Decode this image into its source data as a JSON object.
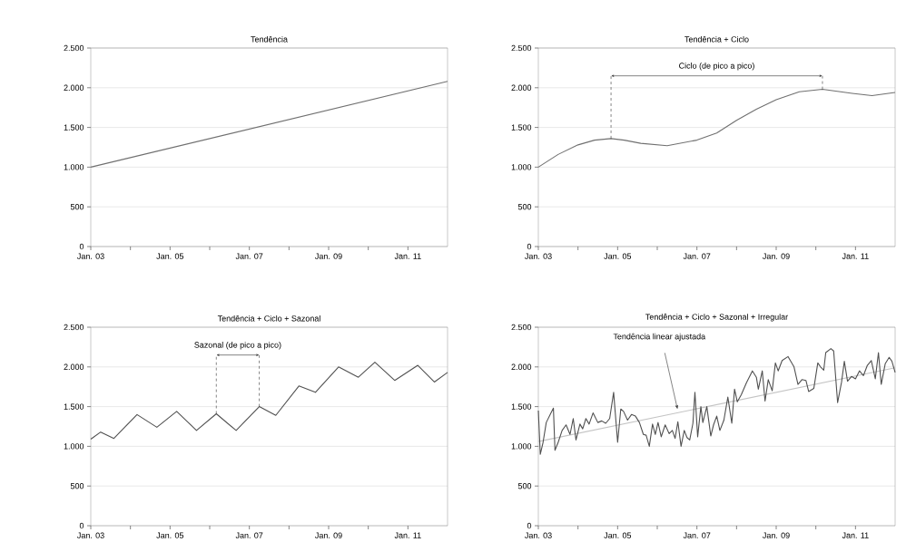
{
  "chart_data": [
    {
      "type": "line",
      "title": "Tendência",
      "grid": "y",
      "xlim": [
        "2003-01",
        "2012-01"
      ],
      "ylim": [
        0,
        2500
      ],
      "xticks": [
        {
          "value": "2003-01",
          "label": "Jan. 03"
        },
        {
          "value": "2004-01",
          "label": null
        },
        {
          "value": "2005-01",
          "label": "Jan. 05"
        },
        {
          "value": "2006-01",
          "label": null
        },
        {
          "value": "2007-01",
          "label": "Jan. 07"
        },
        {
          "value": "2008-01",
          "label": null
        },
        {
          "value": "2009-01",
          "label": "Jan. 09"
        },
        {
          "value": "2010-01",
          "label": null
        },
        {
          "value": "2011-01",
          "label": "Jan. 11"
        }
      ],
      "yticks": [
        0,
        500,
        {
          "value": 1000,
          "label": "1.000"
        },
        {
          "value": 1500,
          "label": "1.500"
        },
        {
          "value": 2000,
          "label": "2.000"
        },
        {
          "value": 2500,
          "label": "2.500"
        }
      ],
      "series": [
        {
          "color": "#707070",
          "x": [
            "2003-01",
            "2012-01"
          ],
          "values": [
            1000,
            2080
          ]
        }
      ]
    },
    {
      "type": "line",
      "title": "Tendência + Ciclo",
      "grid": "y",
      "xlim": [
        "2003-01",
        "2012-01"
      ],
      "ylim": [
        0,
        2500
      ],
      "xticks": [
        {
          "value": "2003-01",
          "label": "Jan. 03"
        },
        {
          "value": "2004-01",
          "label": null
        },
        {
          "value": "2005-01",
          "label": "Jan. 05"
        },
        {
          "value": "2006-01",
          "label": null
        },
        {
          "value": "2007-01",
          "label": "Jan. 07"
        },
        {
          "value": "2008-01",
          "label": null
        },
        {
          "value": "2009-01",
          "label": "Jan. 09"
        },
        {
          "value": "2010-01",
          "label": null
        },
        {
          "value": "2011-01",
          "label": "Jan. 11"
        }
      ],
      "yticks": [
        0,
        500,
        {
          "value": 1000,
          "label": "1.000"
        },
        {
          "value": 1500,
          "label": "1.500"
        },
        {
          "value": 2000,
          "label": "2.000"
        },
        {
          "value": 2500,
          "label": "2.500"
        }
      ],
      "annotations": [
        "Ciclo (de pico a pico)"
      ],
      "series": [
        {
          "color": "#707070",
          "x": [
            "2003-01",
            "2003-07",
            "2004-01",
            "2004-06",
            "2004-11",
            "2005-03",
            "2005-08",
            "2006-04",
            "2007-01",
            "2007-07",
            "2008-01",
            "2008-07",
            "2009-01",
            "2009-08",
            "2010-03",
            "2010-12",
            "2011-06",
            "2012-01"
          ],
          "values": [
            1000,
            1160,
            1280,
            1340,
            1360,
            1340,
            1300,
            1270,
            1340,
            1430,
            1590,
            1730,
            1850,
            1950,
            1980,
            1930,
            1900,
            1940
          ]
        }
      ]
    },
    {
      "type": "line",
      "title": "Tendência + Ciclo + Sazonal",
      "grid": "y",
      "xlim": [
        "2003-01",
        "2012-01"
      ],
      "ylim": [
        0,
        2500
      ],
      "xticks": [
        {
          "value": "2003-01",
          "label": "Jan. 03"
        },
        {
          "value": "2004-01",
          "label": null
        },
        {
          "value": "2005-01",
          "label": "Jan. 05"
        },
        {
          "value": "2006-01",
          "label": null
        },
        {
          "value": "2007-01",
          "label": "Jan. 07"
        },
        {
          "value": "2008-01",
          "label": null
        },
        {
          "value": "2009-01",
          "label": "Jan. 09"
        },
        {
          "value": "2010-01",
          "label": null
        },
        {
          "value": "2011-01",
          "label": "Jan. 11"
        }
      ],
      "yticks": [
        0,
        500,
        {
          "value": 1000,
          "label": "1.000"
        },
        {
          "value": 1500,
          "label": "1.500"
        },
        {
          "value": 2000,
          "label": "2.000"
        },
        {
          "value": 2500,
          "label": "2.500"
        }
      ],
      "annotations": [
        {
          "text": "Sazonal (de pico a pico)",
          "x": "2006-03",
          "y": 1410
        }
      ],
      "series": [
        {
          "color": "#505050",
          "x": [
            "2003-01",
            "2003-04",
            "2003-08",
            "2004-03",
            "2004-09",
            "2005-03",
            "2005-09",
            "2006-03",
            "2006-09",
            "2007-04",
            "2007-09",
            "2008-04",
            "2008-09",
            "2009-04",
            "2009-10",
            "2010-03",
            "2010-09",
            "2011-04",
            "2011-09",
            "2012-01"
          ],
          "values": [
            1090,
            1180,
            1100,
            1400,
            1240,
            1440,
            1200,
            1410,
            1200,
            1500,
            1390,
            1760,
            1680,
            2000,
            1870,
            2060,
            1830,
            2020,
            1810,
            1930
          ]
        }
      ]
    },
    {
      "type": "line",
      "title": "Tendência + Ciclo + Sazonal + Irregular",
      "grid": "y",
      "xlim": [
        "2003-01",
        "2012-01"
      ],
      "ylim": [
        0,
        2500
      ],
      "xticks": [
        {
          "value": "2003-01",
          "label": "Jan. 03"
        },
        {
          "value": "2004-01",
          "label": null
        },
        {
          "value": "2005-01",
          "label": "Jan. 05"
        },
        {
          "value": "2006-01",
          "label": null
        },
        {
          "value": "2007-01",
          "label": "Jan. 07"
        },
        {
          "value": "2008-01",
          "label": null
        },
        {
          "value": "2009-01",
          "label": "Jan. 09"
        },
        {
          "value": "2010-01",
          "label": null
        },
        {
          "value": "2011-01",
          "label": "Jan. 11"
        }
      ],
      "yticks": [
        0,
        500,
        {
          "value": 1000,
          "label": "1.000"
        },
        {
          "value": 1500,
          "label": "1.500"
        },
        {
          "value": 2000,
          "label": "2.000"
        },
        {
          "value": 2500,
          "label": "2.500"
        }
      ],
      "annotations": [
        "Tendência linear ajustada"
      ],
      "series": [
        {
          "color": "#c4c4c4",
          "x": [
            "2003-01",
            "2012-01"
          ],
          "values": [
            1060,
            1990
          ]
        },
        {
          "color": "#505050",
          "x": [
            "2003-01-01",
            "2003-01-19",
            "2003-02-14",
            "2003-03-13",
            "2003-04-19",
            "2003-05-18",
            "2003-06-02",
            "2003-07-01",
            "2003-08-07",
            "2003-09-13",
            "2003-10-19",
            "2003-11-18",
            "2003-12-13",
            "2004-01-19",
            "2004-02-14",
            "2004-03-13",
            "2004-04-12",
            "2004-05-18",
            "2004-07-01",
            "2004-08-07",
            "2004-09-13",
            "2004-10-19",
            "2004-11-25",
            "2005-01-01",
            "2005-01-30",
            "2005-02-25",
            "2005-04-01",
            "2005-05-07",
            "2005-06-13",
            "2005-07-19",
            "2005-08-25",
            "2005-09-20",
            "2005-10-19",
            "2005-11-18",
            "2005-12-13",
            "2006-01-08",
            "2006-02-07",
            "2006-03-13",
            "2006-04-19",
            "2006-05-18",
            "2006-06-13",
            "2006-07-08",
            "2006-08-07",
            "2006-09-06",
            "2006-10-01",
            "2006-10-26",
            "2006-11-25",
            "2006-12-13",
            "2007-01-08",
            "2007-02-07",
            "2007-02-25",
            "2007-04-01",
            "2007-05-07",
            "2007-06-02",
            "2007-07-01",
            "2007-07-30",
            "2007-09-06",
            "2007-10-12",
            "2007-11-18",
            "2007-12-13",
            "2008-01-08",
            "2008-02-14",
            "2008-04-01",
            "2008-05-25",
            "2008-07-01",
            "2008-07-19",
            "2008-08-25",
            "2008-09-20",
            "2008-10-19",
            "2008-11-25",
            "2008-12-24",
            "2009-01-19",
            "2009-02-25",
            "2009-04-19",
            "2009-06-13",
            "2009-07-19",
            "2009-08-25",
            "2009-10-01",
            "2009-10-26",
            "2009-12-13",
            "2010-01-19",
            "2010-02-14",
            "2010-03-13",
            "2010-04-01",
            "2010-05-18",
            "2010-06-13",
            "2010-07-19",
            "2010-08-25",
            "2010-09-20",
            "2010-10-19",
            "2010-11-25",
            "2011-01-01",
            "2011-02-07",
            "2011-03-13",
            "2011-04-19",
            "2011-05-25",
            "2011-07-01",
            "2011-07-30",
            "2011-08-25",
            "2011-10-01",
            "2011-11-07",
            "2011-12-02",
            "2012-01-01"
          ],
          "values": [
            1450,
            900,
            1050,
            1300,
            1400,
            1480,
            950,
            1050,
            1200,
            1270,
            1150,
            1350,
            1080,
            1280,
            1220,
            1350,
            1280,
            1420,
            1300,
            1320,
            1290,
            1350,
            1680,
            1050,
            1470,
            1440,
            1330,
            1400,
            1380,
            1300,
            1150,
            1140,
            1000,
            1280,
            1150,
            1300,
            1120,
            1270,
            1160,
            1200,
            1100,
            1310,
            1000,
            1200,
            1110,
            1080,
            1290,
            1680,
            1120,
            1500,
            1300,
            1500,
            1130,
            1270,
            1380,
            1200,
            1330,
            1620,
            1290,
            1720,
            1560,
            1650,
            1800,
            1950,
            1870,
            1720,
            1950,
            1570,
            1840,
            1700,
            2050,
            1950,
            2080,
            2130,
            2000,
            1780,
            1840,
            1830,
            1690,
            1730,
            2050,
            2000,
            1960,
            2180,
            2230,
            2200,
            1550,
            1810,
            2070,
            1820,
            1880,
            1850,
            1950,
            1890,
            2020,
            2080,
            1850,
            2180,
            1780,
            2040,
            2120,
            2070,
            1930
          ]
        }
      ]
    }
  ]
}
